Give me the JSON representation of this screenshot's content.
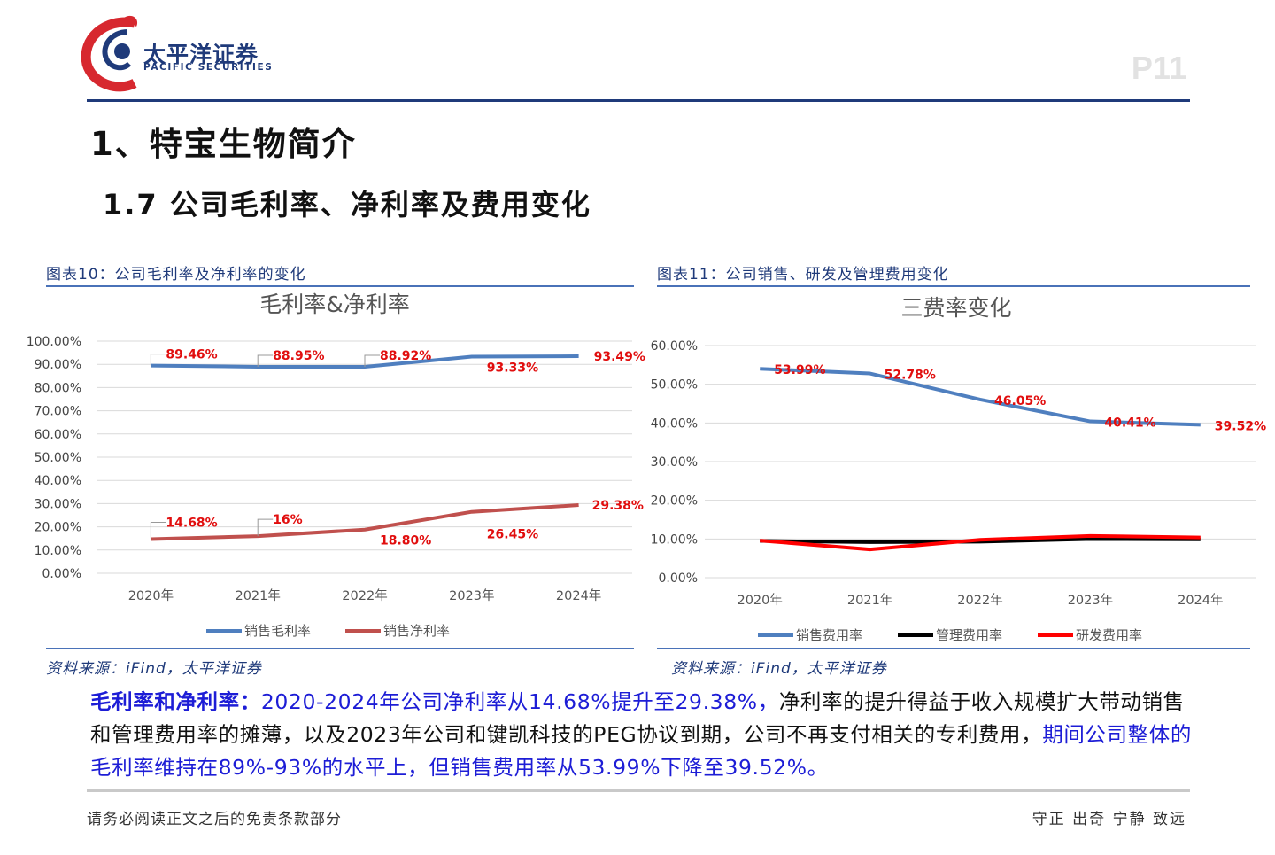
{
  "brand": {
    "name_cn": "太平洋证券",
    "name_en": "PACIFIC SECURITIES",
    "colors": {
      "navy": "#1f3a7a",
      "red": "#d7282f",
      "blue_line": "#4a72b8"
    }
  },
  "page_number": "P11",
  "heading1": "1、特宝生物简介",
  "heading2": "1.7 公司毛利率、净利率及费用变化",
  "figure10": {
    "caption": "图表10：公司毛利率及净利率的变化",
    "source": "资料来源：iFind，太平洋证券"
  },
  "figure11": {
    "caption": "图表11：公司销售、研发及管理费用变化",
    "source": "资料来源：iFind，太平洋证券"
  },
  "chart_data": [
    {
      "type": "line",
      "title": "毛利率&净利率",
      "categories": [
        "2020年",
        "2021年",
        "2022年",
        "2023年",
        "2024年"
      ],
      "yticks": [
        "0.00%",
        "10.00%",
        "20.00%",
        "30.00%",
        "40.00%",
        "50.00%",
        "60.00%",
        "70.00%",
        "80.00%",
        "90.00%",
        "100.00%"
      ],
      "ylim": [
        0,
        100
      ],
      "grid": true,
      "legend_position": "bottom",
      "series": [
        {
          "name": "销售毛利率",
          "color": "#4f7fbf",
          "values": [
            89.46,
            88.95,
            88.92,
            93.33,
            93.49
          ],
          "labels": [
            "89.46%",
            "88.95%",
            "88.92%",
            "93.33%",
            "93.49%"
          ]
        },
        {
          "name": "销售净利率",
          "color": "#c0504d",
          "values": [
            14.68,
            16.0,
            18.8,
            26.45,
            29.38
          ],
          "labels": [
            "14.68%",
            "16%",
            "18.80%",
            "26.45%",
            "29.38%"
          ]
        }
      ]
    },
    {
      "type": "line",
      "title": "三费率变化",
      "categories": [
        "2020年",
        "2021年",
        "2022年",
        "2023年",
        "2024年"
      ],
      "yticks": [
        "0.00%",
        "10.00%",
        "20.00%",
        "30.00%",
        "40.00%",
        "50.00%",
        "60.00%"
      ],
      "ylim": [
        0,
        60
      ],
      "grid": true,
      "legend_position": "bottom",
      "series": [
        {
          "name": "销售费用率",
          "color": "#4f7fbf",
          "values": [
            53.99,
            52.78,
            46.05,
            40.41,
            39.52
          ],
          "labels": [
            "53.99%",
            "52.78%",
            "46.05%",
            "40.41%",
            "39.52%"
          ]
        },
        {
          "name": "管理费用率",
          "color": "#000000",
          "values": [
            9.5,
            9.2,
            9.3,
            10.0,
            9.9
          ],
          "labels": []
        },
        {
          "name": "研发费用率",
          "color": "#ff0000",
          "values": [
            9.6,
            7.3,
            9.8,
            10.8,
            10.4
          ],
          "labels": []
        }
      ]
    }
  ],
  "paragraph": {
    "lead": "毛利率和净利率：",
    "part1": "2020-2024年公司净利率从14.68%提升至29.38%，",
    "part2": "净利率的提升得益于收入规模扩大带动销售和管理费用率的摊薄，以及2023年公司和键凯科技的PEG协议到期，公司不再支付相关的专利费用，",
    "part3": "期间公司整体的毛利率维持在89%-93%的水平上，但销售费用率从53.99%下降至39.52%。"
  },
  "footer": {
    "disclaimer": "请务必阅读正文之后的免责条款部分",
    "motto": "守正 出奇 宁静 致远"
  }
}
